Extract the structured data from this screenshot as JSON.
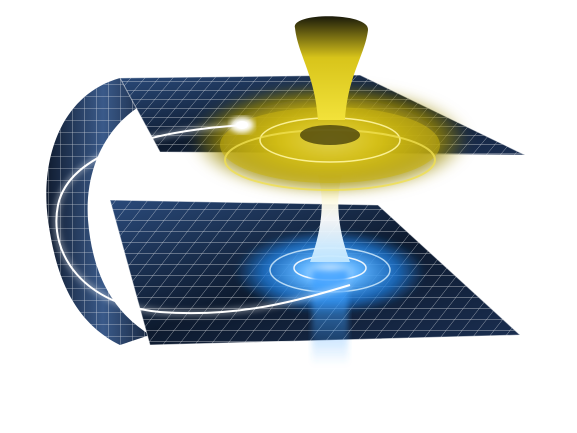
{
  "scene": {
    "subject": "folded-spacetime-wormhole",
    "colors": {
      "background": "#ffffff",
      "space_dark": "#0d1a2e",
      "space_mid": "#1f3a66",
      "grid_line": "#ffffff",
      "upper_glow": "#e6d21a",
      "upper_glow_deep": "#9c8a08",
      "lower_glow": "#1e7ad8",
      "lower_glow_bright": "#bfe6ff",
      "light_trail": "#ffffff"
    }
  }
}
